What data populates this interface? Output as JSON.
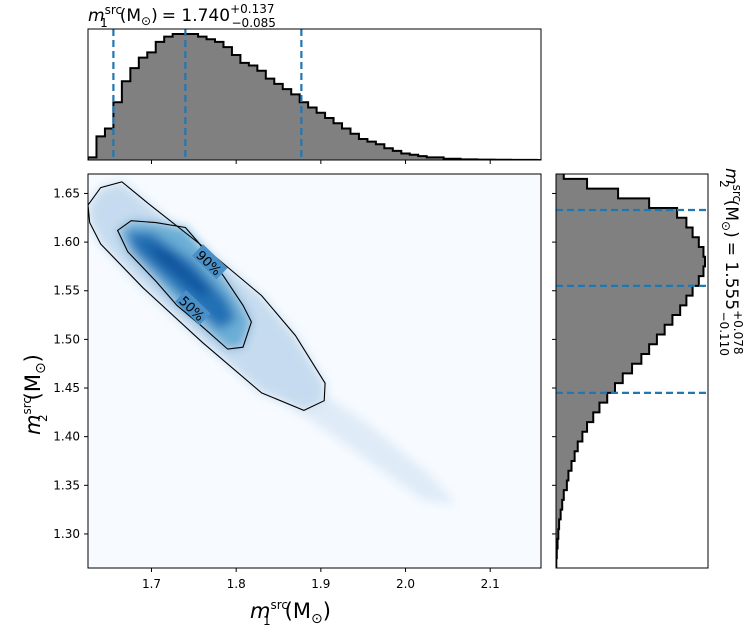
{
  "chart_data": [
    {
      "panel": "top-marginal",
      "type": "histogram",
      "title_prefix": "m",
      "title_sub": "1",
      "title_sup": "src",
      "title_unit": "(M",
      "title_unit_sub": "⊙",
      "title_unit_close": ")",
      "title_value": "= 1.740",
      "title_plus": "+0.137",
      "title_minus": "−0.085",
      "xlim": [
        1.625,
        2.16
      ],
      "bin_start": 1.625,
      "bin_width": 0.01,
      "values": [
        2,
        18,
        24,
        44,
        60,
        70,
        78,
        82,
        90,
        94,
        96,
        96,
        96,
        94,
        92,
        90,
        86,
        80,
        74,
        72,
        68,
        62,
        58,
        54,
        50,
        44,
        40,
        36,
        32,
        28,
        24,
        20,
        16,
        14,
        12,
        9,
        7,
        5,
        4,
        3,
        2,
        2,
        1,
        1,
        0.5,
        0.5,
        0.3,
        0.3,
        0.2,
        0.2,
        0.1,
        0.1,
        0.1,
        0
      ],
      "quantiles": [
        1.655,
        1.74,
        1.877
      ],
      "line_color": "#1f77b4",
      "fill_color": "#808080"
    },
    {
      "panel": "right-marginal",
      "type": "histogram",
      "title_prefix": "m",
      "title_sub": "2",
      "title_sup": "src",
      "title_unit": "(M",
      "title_unit_sub": "⊙",
      "title_unit_close": ")",
      "title_value": "= 1.555",
      "title_plus": "+0.078",
      "title_minus": "−0.110",
      "ylim": [
        1.265,
        1.67
      ],
      "bin_start": 1.265,
      "bin_width": 0.01,
      "values": [
        0.2,
        0.5,
        1,
        1.5,
        2,
        3,
        4,
        5,
        7,
        8,
        10,
        12,
        14,
        17,
        20,
        24,
        28,
        33,
        38,
        43,
        49,
        55,
        60,
        65,
        70,
        75,
        80,
        84,
        88,
        92,
        95,
        96,
        95,
        92,
        88,
        84,
        78,
        60,
        40,
        20,
        5
      ],
      "quantiles": [
        1.445,
        1.555,
        1.633
      ],
      "line_color": "#1f77b4",
      "fill_color": "#808080"
    },
    {
      "panel": "joint",
      "type": "heatmap",
      "xlabel_prefix": "m",
      "xlabel_sub": "1",
      "xlabel_sup": "src",
      "xlabel_unit": "(M",
      "xlabel_unit_sub": "⊙",
      "xlabel_unit_close": ")",
      "ylabel_prefix": "m",
      "ylabel_sub": "2",
      "ylabel_sup": "src",
      "ylabel_unit": "(M",
      "ylabel_unit_sub": "⊙",
      "ylabel_unit_close": ")",
      "xlim": [
        1.625,
        2.16
      ],
      "ylim": [
        1.265,
        1.67
      ],
      "xticks": [
        "1.7",
        "1.8",
        "1.9",
        "2.0",
        "2.1"
      ],
      "xtick_values": [
        1.7,
        1.8,
        1.9,
        2.0,
        2.1
      ],
      "yticks": [
        "1.65",
        "1.60",
        "1.55",
        "1.50",
        "1.45",
        "1.40",
        "1.35",
        "1.30"
      ],
      "ytick_values": [
        1.65,
        1.6,
        1.55,
        1.5,
        1.45,
        1.4,
        1.35,
        1.3
      ],
      "colormap": "Blues",
      "contour_labels": [
        "90%",
        "50%"
      ],
      "contour_90": [
        [
          1.625,
          1.638
        ],
        [
          1.64,
          1.656
        ],
        [
          1.665,
          1.662
        ],
        [
          1.7,
          1.637
        ],
        [
          1.76,
          1.596
        ],
        [
          1.83,
          1.545
        ],
        [
          1.87,
          1.504
        ],
        [
          1.905,
          1.455
        ],
        [
          1.904,
          1.437
        ],
        [
          1.88,
          1.427
        ],
        [
          1.83,
          1.445
        ],
        [
          1.76,
          1.497
        ],
        [
          1.69,
          1.553
        ],
        [
          1.64,
          1.598
        ],
        [
          1.627,
          1.62
        ],
        [
          1.625,
          1.638
        ]
      ],
      "contour_50": [
        [
          1.66,
          1.612
        ],
        [
          1.676,
          1.622
        ],
        [
          1.705,
          1.62
        ],
        [
          1.74,
          1.615
        ],
        [
          1.755,
          1.6
        ],
        [
          1.785,
          1.565
        ],
        [
          1.808,
          1.535
        ],
        [
          1.818,
          1.518
        ],
        [
          1.808,
          1.492
        ],
        [
          1.79,
          1.49
        ],
        [
          1.76,
          1.513
        ],
        [
          1.73,
          1.535
        ],
        [
          1.705,
          1.56
        ],
        [
          1.672,
          1.59
        ],
        [
          1.66,
          1.612
        ]
      ]
    }
  ]
}
